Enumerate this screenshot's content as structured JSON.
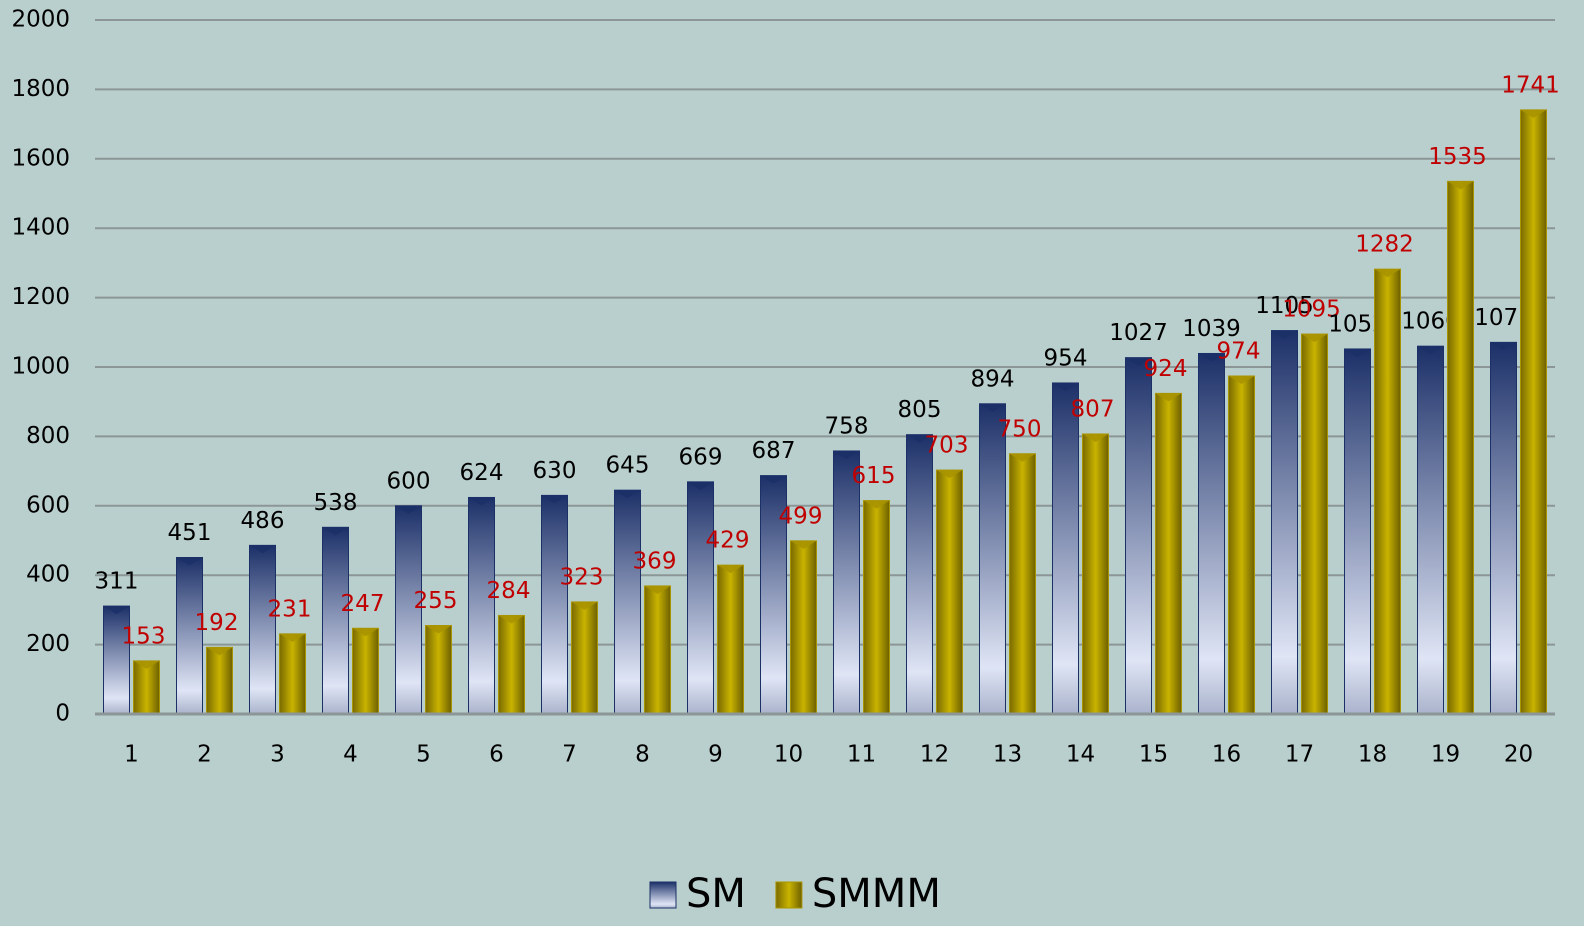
{
  "chart_data": {
    "type": "bar",
    "categories": [
      "1",
      "2",
      "3",
      "4",
      "5",
      "6",
      "7",
      "8",
      "9",
      "10",
      "11",
      "12",
      "13",
      "14",
      "15",
      "16",
      "17",
      "18",
      "19",
      "20"
    ],
    "series": [
      {
        "name": "SM",
        "color": "#1c3068",
        "label_color": "#000000",
        "values": [
          311,
          451,
          486,
          538,
          600,
          624,
          630,
          645,
          669,
          687,
          758,
          805,
          894,
          954,
          1027,
          1039,
          1105,
          1052,
          1060,
          1071
        ]
      },
      {
        "name": "SMMM",
        "color": "#a89400",
        "label_color": "#c00000",
        "values": [
          153,
          192,
          231,
          247,
          255,
          284,
          323,
          369,
          429,
          499,
          615,
          703,
          750,
          807,
          924,
          974,
          1095,
          1282,
          1535,
          1741
        ]
      }
    ],
    "ylim": [
      0,
      2000
    ],
    "yticks": [
      0,
      200,
      400,
      600,
      800,
      1000,
      1200,
      1400,
      1600,
      1800,
      2000
    ],
    "grid": true,
    "legend": "bottom"
  }
}
